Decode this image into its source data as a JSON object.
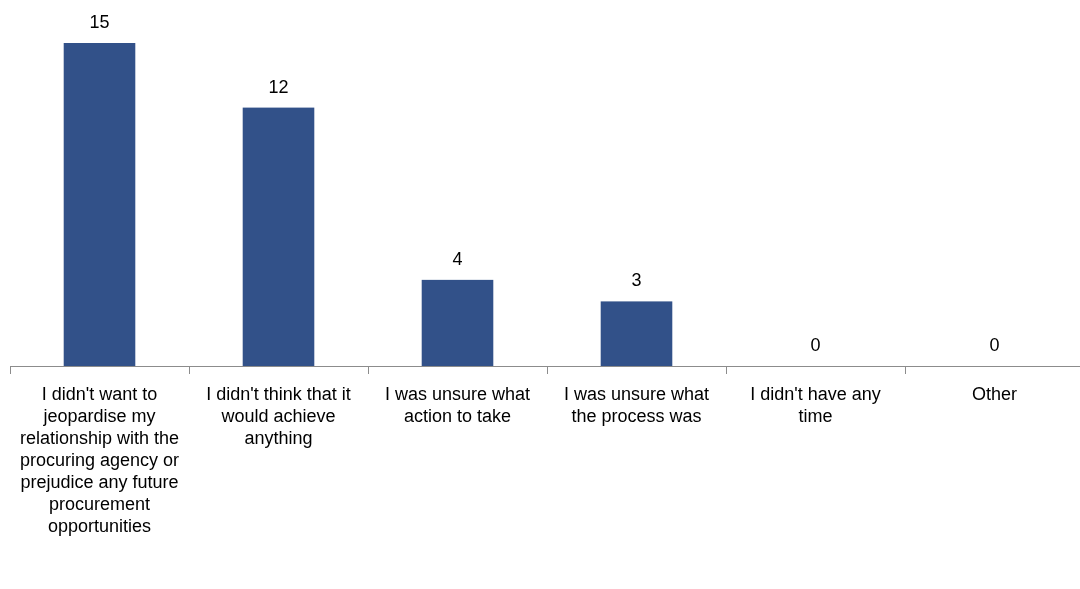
{
  "chart_data": {
    "type": "bar",
    "categories": [
      "I didn't want to jeopardise my relationship with the procuring agency or prejudice any future procurement opportunities",
      "I didn't think that it would achieve anything",
      "I was unsure what action to take",
      "I was unsure what the process was",
      "I didn't have any time",
      "Other"
    ],
    "values": [
      15,
      12,
      4,
      3,
      0,
      0
    ],
    "color": "#325189",
    "data_labels": true
  }
}
